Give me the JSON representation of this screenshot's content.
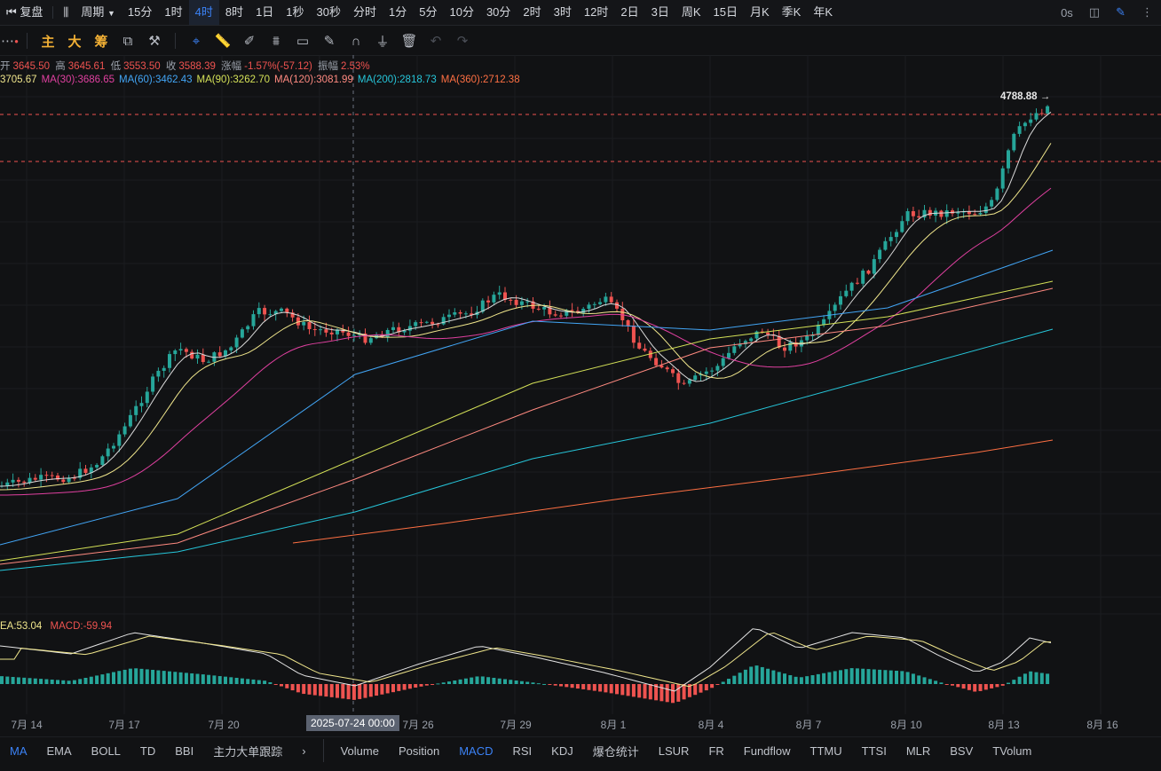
{
  "topbar": {
    "replay_label": "复盘",
    "period_label": "周期",
    "intervals": [
      "15分",
      "1时",
      "4时",
      "8时",
      "1日",
      "1秒",
      "30秒",
      "分时",
      "1分",
      "5分",
      "10分",
      "30分",
      "2时",
      "3时",
      "12时",
      "2日",
      "3日",
      "周K",
      "15日",
      "月K",
      "季K",
      "年K"
    ],
    "active_interval": "4时",
    "delay": "0s"
  },
  "toolbar": {
    "indicator_labels": [
      "主",
      "大",
      "筹"
    ]
  },
  "ohlc": {
    "open_label": "开",
    "open": "3645.50",
    "high_label": "高",
    "high": "3645.61",
    "low_label": "低",
    "low": "3553.50",
    "close_label": "收",
    "close": "3588.39",
    "change_label": "涨幅",
    "change": "-1.57%(-57.12)",
    "amp_label": "振幅",
    "amp": "2.53%"
  },
  "ma_legend": [
    {
      "text": "3705.67",
      "color": "#f0e68c"
    },
    {
      "text": "MA(30):3686.65",
      "color": "#e040a0"
    },
    {
      "text": "MA(60):3462.43",
      "color": "#42a5f5"
    },
    {
      "text": "MA(90):3262.70",
      "color": "#d4e157"
    },
    {
      "text": "MA(120):3081.99",
      "color": "#ff8a80"
    },
    {
      "text": "MA(200):2818.73",
      "color": "#26c6da"
    },
    {
      "text": "MA(360):2712.38",
      "color": "#ff7043"
    }
  ],
  "price_tag": "4788.88 →",
  "macd_legend": {
    "dea": "EA:53.04",
    "macd": "MACD:-59.94"
  },
  "xaxis": {
    "ticks": [
      {
        "label": "7月 14",
        "x": 30
      },
      {
        "label": "7月 17",
        "x": 140
      },
      {
        "label": "7月 20",
        "x": 252
      },
      {
        "label": "7月 26",
        "x": 471
      },
      {
        "label": "7月 29",
        "x": 581
      },
      {
        "label": "8月 1",
        "x": 691
      },
      {
        "label": "8月 4",
        "x": 801
      },
      {
        "label": "8月 7",
        "x": 911
      },
      {
        "label": "8月 10",
        "x": 1021
      },
      {
        "label": "8月 13",
        "x": 1131
      },
      {
        "label": "8月 16",
        "x": 1242
      }
    ],
    "crosshair_label": "2025-07-24 00:00"
  },
  "bottombar": {
    "main_indicators": [
      "MA",
      "EMA",
      "BOLL",
      "TD",
      "BBI",
      "主力大单跟踪"
    ],
    "sub_indicators": [
      "Volume",
      "Position",
      "MACD",
      "RSI",
      "KDJ",
      "爆仓统计",
      "LSUR",
      "FR",
      "Fundflow",
      "TTMU",
      "TTSI",
      "MLR",
      "BSV",
      "TVolum"
    ],
    "active_main": "MA",
    "active_sub": "MACD"
  },
  "colors": {
    "up": "#26a69a",
    "down": "#ef5350",
    "accent": "#3b82f6"
  }
}
